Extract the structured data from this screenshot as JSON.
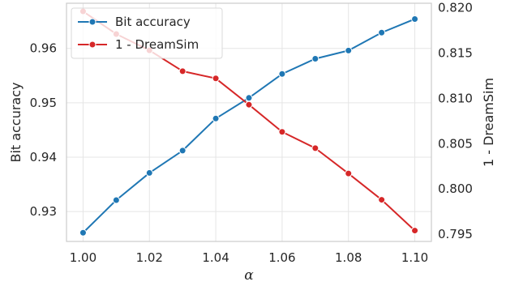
{
  "chart_data": {
    "type": "line",
    "x": [
      1.0,
      1.01,
      1.02,
      1.03,
      1.04,
      1.05,
      1.06,
      1.07,
      1.08,
      1.09,
      1.1
    ],
    "xlabel": "α",
    "xlim": [
      0.995,
      1.105
    ],
    "x_ticks": [
      1.0,
      1.02,
      1.04,
      1.06,
      1.08,
      1.1
    ],
    "x_tick_labels": [
      "1.00",
      "1.02",
      "1.04",
      "1.06",
      "1.08",
      "1.10"
    ],
    "ylabel_left": "Bit accuracy",
    "ylim_left": [
      0.9245,
      0.9683
    ],
    "y_ticks_left": [
      0.93,
      0.94,
      0.95,
      0.96
    ],
    "y_tick_labels_left": [
      "0.93",
      "0.94",
      "0.95",
      "0.96"
    ],
    "ylabel_right": "1 - DreamSim",
    "ylim_right": [
      0.7942,
      0.8205
    ],
    "y_ticks_right": [
      0.795,
      0.8,
      0.805,
      0.81,
      0.815,
      0.82
    ],
    "y_tick_labels_right": [
      "0.795",
      "0.800",
      "0.805",
      "0.810",
      "0.815",
      "0.820"
    ],
    "grid": true,
    "legend_position": "top-left",
    "series": [
      {
        "name": "Bit accuracy",
        "axis": "left",
        "color": "#1f77b4",
        "values": [
          0.9261,
          0.9321,
          0.9371,
          0.9412,
          0.9471,
          0.9509,
          0.9553,
          0.9581,
          0.9596,
          0.9629,
          0.9654
        ]
      },
      {
        "name": "1 - DreamSim",
        "axis": "right",
        "color": "#d62728",
        "values": [
          0.8196,
          0.8171,
          0.8153,
          0.813,
          0.8122,
          0.8093,
          0.8063,
          0.8045,
          0.8017,
          0.7988,
          0.7954
        ]
      }
    ]
  }
}
